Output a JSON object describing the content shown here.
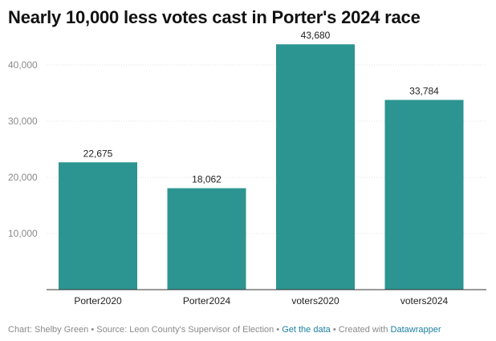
{
  "chart_data": {
    "type": "bar",
    "title": "Nearly 10,000 less votes cast in Porter's 2024 race",
    "categories": [
      "Porter2020",
      "Porter2024",
      "voters2020",
      "voters2024"
    ],
    "values": [
      22675,
      18062,
      43680,
      33784
    ],
    "value_labels": [
      "22,675",
      "18,062",
      "43,680",
      "33,784"
    ],
    "ylim": [
      0,
      44000
    ],
    "yticks": [
      10000,
      20000,
      30000,
      40000
    ],
    "ytick_labels": [
      "10,000",
      "20,000",
      "30,000",
      "40,000"
    ],
    "grid": true,
    "bar_color": "#2c9591",
    "xlabel": "",
    "ylabel": ""
  },
  "footer": {
    "chart_credit": "Chart: Shelby Green",
    "sep1": " • ",
    "source": "Source: Leon County's Supervisor of Election",
    "sep2": " • ",
    "get_data": "Get the data",
    "sep3": " • ",
    "created_with": "Created with ",
    "datawrapper": "Datawrapper"
  }
}
